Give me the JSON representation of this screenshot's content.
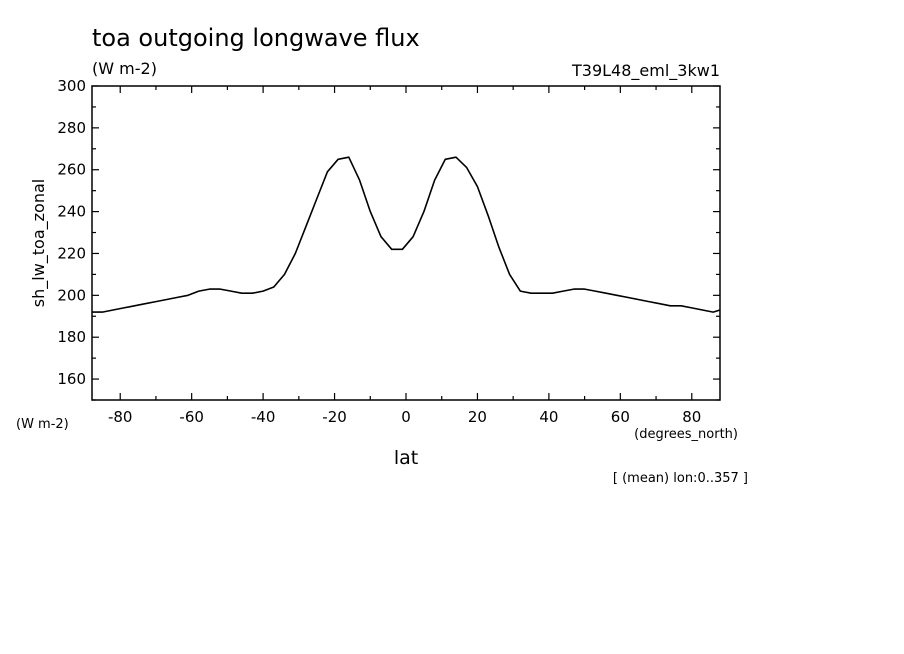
{
  "chart_data": {
    "type": "line",
    "title": "toa outgoing longwave flux",
    "subtitle": "(W m-2)",
    "run_label": "T39L48_eml_3kw1",
    "ylabel": "sh_lw_toa_zonal",
    "yunits": "(W m-2)",
    "xlabel": "lat",
    "xunits": "(degrees_north)",
    "footnote": "[ (mean) lon:0..357 ]",
    "xlim": [
      -87.9,
      87.9
    ],
    "ylim": [
      150,
      300
    ],
    "xticks": [
      -80,
      -60,
      -40,
      -20,
      0,
      20,
      40,
      60,
      80
    ],
    "xtick_labels": [
      "-80",
      "-60",
      "-40",
      "-20",
      "0",
      "20",
      "40",
      "60",
      "80"
    ],
    "yticks": [
      160,
      180,
      200,
      220,
      240,
      260,
      280,
      300
    ],
    "ytick_labels": [
      "160",
      "180",
      "200",
      "220",
      "240",
      "260",
      "280",
      "300"
    ],
    "grid": false,
    "series": [
      {
        "x": [
          -87.9,
          -85,
          -82,
          -79,
          -76,
          -73,
          -70,
          -67,
          -64,
          -61,
          -58,
          -55,
          -52,
          -49,
          -46,
          -43,
          -40,
          -37,
          -34,
          -31,
          -28,
          -25,
          -22,
          -19,
          -16,
          -13,
          -10,
          -7,
          -4,
          -1,
          2,
          5,
          8,
          11,
          14,
          17,
          20,
          23,
          26,
          29,
          32,
          35,
          38,
          41,
          44,
          47,
          50,
          53,
          56,
          59,
          62,
          65,
          68,
          71,
          74,
          77,
          80,
          83,
          86,
          87.9
        ],
        "y": [
          192,
          192,
          193,
          194,
          195,
          196,
          197,
          198,
          199,
          200,
          202,
          203,
          203,
          202,
          201,
          201,
          202,
          204,
          210,
          220,
          233,
          246,
          259,
          265,
          266,
          255,
          240,
          228,
          222,
          222,
          228,
          240,
          255,
          265,
          266,
          261,
          252,
          238,
          223,
          210,
          202,
          201,
          201,
          201,
          202,
          203,
          203,
          202,
          201,
          200,
          199,
          198,
          197,
          196,
          195,
          195,
          194,
          193,
          192,
          193
        ],
        "color": "#000000"
      }
    ]
  }
}
